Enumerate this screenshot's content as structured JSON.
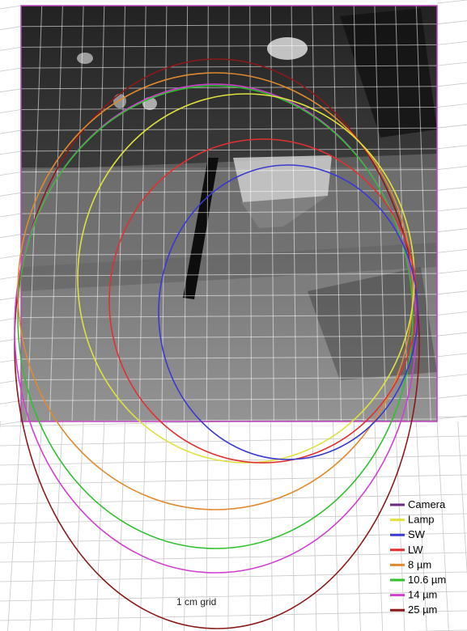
{
  "figure": {
    "grid_caption": "1 cm grid"
  },
  "legend": {
    "items": [
      {
        "label": "Camera",
        "color": "#6a2a8a"
      },
      {
        "label": "Lamp",
        "color": "#e0e040"
      },
      {
        "label": "SW",
        "color": "#3a3ad0"
      },
      {
        "label": "LW",
        "color": "#e03030"
      },
      {
        "label": "8 µm",
        "color": "#e08a30"
      },
      {
        "label": "10.6 µm",
        "color": "#30c030"
      },
      {
        "label": "14 µm",
        "color": "#d040d0"
      },
      {
        "label": "25 µm",
        "color": "#8a1a1a"
      }
    ]
  },
  "colors": {
    "photo_border": "#c040c0",
    "grid_line": "#c8c8c8"
  }
}
